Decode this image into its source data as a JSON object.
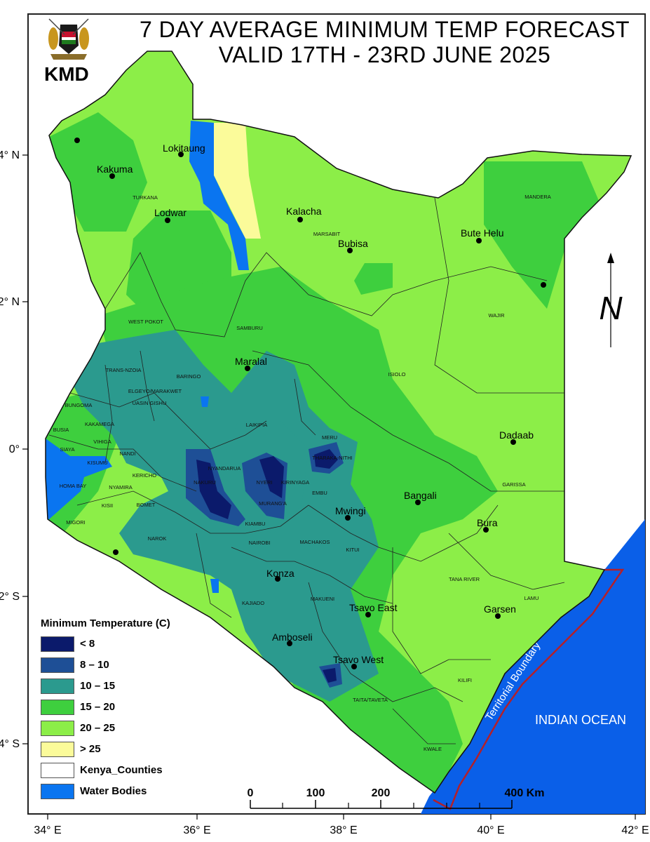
{
  "title_line_1": "7 DAY AVERAGE MINIMUM TEMP FORECAST",
  "title_line_2": "VALID 17TH - 23RD JUNE 2025",
  "agency": "KMD",
  "legend": {
    "title": "Minimum Temperature (C)",
    "items": [
      {
        "label": "< 8",
        "color": "#0b1a6b"
      },
      {
        "label": "8 – 10",
        "color": "#1e4f96"
      },
      {
        "label": "10 – 15",
        "color": "#2b9a8e"
      },
      {
        "label": "15 – 20",
        "color": "#3ecf3e"
      },
      {
        "label": "20 – 25",
        "color": "#8cee48"
      },
      {
        "label": "> 25",
        "color": "#fbfb9a"
      },
      {
        "label": "Kenya_Counties",
        "color": "#ffffff"
      },
      {
        "label": "Water Bodies",
        "color": "#0a75f0"
      }
    ]
  },
  "colors": {
    "water": "#0a5fe8",
    "lake": "#0a75f0",
    "territorial_boundary": "#b3202a"
  },
  "axes": {
    "x_ticks": [
      "34° E",
      "36° E",
      "38° E",
      "40° E",
      "42° E"
    ],
    "y_ticks": [
      "4° N",
      "2° N",
      "0°",
      "2° S",
      "4° S"
    ]
  },
  "scale_bar": {
    "labels": [
      "0",
      "100",
      "200",
      "400 Km"
    ]
  },
  "towns": [
    {
      "name": "Lokitaung"
    },
    {
      "name": "Kakuma"
    },
    {
      "name": "Lodwar"
    },
    {
      "name": "Kalacha"
    },
    {
      "name": "Bubisa"
    },
    {
      "name": "Bute Helu"
    },
    {
      "name": "Maralal"
    },
    {
      "name": "Dadaab"
    },
    {
      "name": "Bangali"
    },
    {
      "name": "Mwingi"
    },
    {
      "name": "Bura"
    },
    {
      "name": "Konza"
    },
    {
      "name": "Tsavo East"
    },
    {
      "name": "Garsen"
    },
    {
      "name": "Amboseli"
    },
    {
      "name": "Tsavo West"
    }
  ],
  "counties": [
    "TURKANA",
    "MARSABIT",
    "MANDERA",
    "WAJIR",
    "WEST POKOT",
    "SAMBURU",
    "ISIOLO",
    "TRANS-NZOIA",
    "ELGEYO/MARAKWET",
    "BARINGO",
    "LAIKIPIA",
    "MERU",
    "THARAKA-NITHI",
    "BUNGOMA",
    "BUSIA",
    "KAKAMEGA",
    "UASIN GISHU",
    "NANDI",
    "VIHIGA",
    "SIAYA",
    "KISUMU",
    "KERICHO",
    "NAKURU",
    "NYANDARUA",
    "NYERI",
    "KIRINYAGA",
    "EMBU",
    "MURANG'A",
    "HOMA BAY",
    "NYAMIRA",
    "BOMET",
    "KISII",
    "MIGORI",
    "NAROK",
    "KIAMBU",
    "NAIROBI",
    "MACHAKOS",
    "KITUI",
    "GARISSA",
    "TANA RIVER",
    "LAMU",
    "KAJIADO",
    "MAKUENI",
    "KILIFI",
    "TAITA/TAVETA",
    "KWALE"
  ],
  "ocean_label": "INDIAN OCEAN",
  "territorial_label": "Territorial Boundary"
}
